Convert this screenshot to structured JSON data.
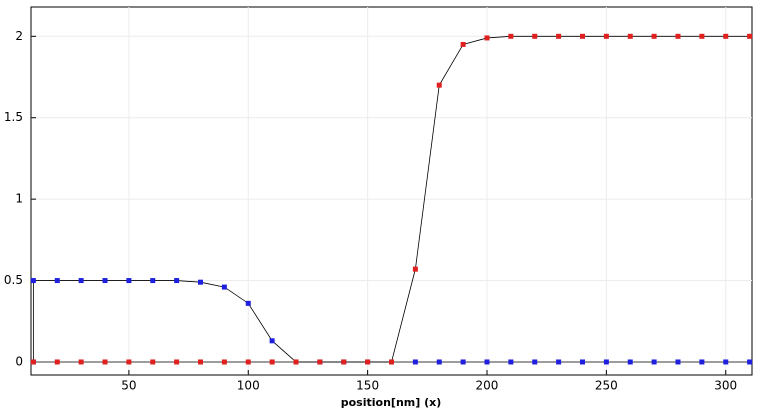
{
  "chart_data": {
    "type": "line",
    "x_label": "position[nm] (x)",
    "xlim": [
      9,
      311
    ],
    "ylim": [
      -0.08,
      2.18
    ],
    "xticks": [
      50,
      100,
      150,
      200,
      250,
      300
    ],
    "yticks": [
      0,
      0.5,
      1,
      1.5,
      2
    ],
    "grid": true,
    "line_color": "#000000",
    "series": [
      {
        "color": "#1f1fe0",
        "x": [
          10,
          10,
          20,
          30,
          40,
          50,
          60,
          70,
          80,
          90,
          100,
          110,
          120,
          130,
          140,
          150,
          160,
          170,
          180,
          190,
          200,
          210,
          220,
          230,
          240,
          250,
          260,
          270,
          280,
          290,
          300,
          310
        ],
        "values": [
          0,
          0.5,
          0.5,
          0.5,
          0.5,
          0.5,
          0.5,
          0.5,
          0.49,
          0.46,
          0.36,
          0.13,
          0,
          0,
          0,
          0,
          0,
          0,
          0,
          0,
          0,
          0,
          0,
          0,
          0,
          0,
          0,
          0,
          0,
          0,
          0,
          0
        ]
      },
      {
        "color": "#e01f1f",
        "x": [
          10,
          20,
          30,
          40,
          50,
          60,
          70,
          80,
          90,
          100,
          110,
          120,
          130,
          140,
          150,
          160,
          170,
          180,
          190,
          200,
          210,
          220,
          230,
          240,
          250,
          260,
          270,
          280,
          290,
          300,
          310
        ],
        "values": [
          0,
          0,
          0,
          0,
          0,
          0,
          0,
          0,
          0,
          0,
          0,
          0,
          0,
          0,
          0,
          0,
          0.57,
          1.7,
          1.95,
          1.99,
          2,
          2,
          2,
          2,
          2,
          2,
          2,
          2,
          2,
          2,
          2
        ]
      }
    ]
  }
}
